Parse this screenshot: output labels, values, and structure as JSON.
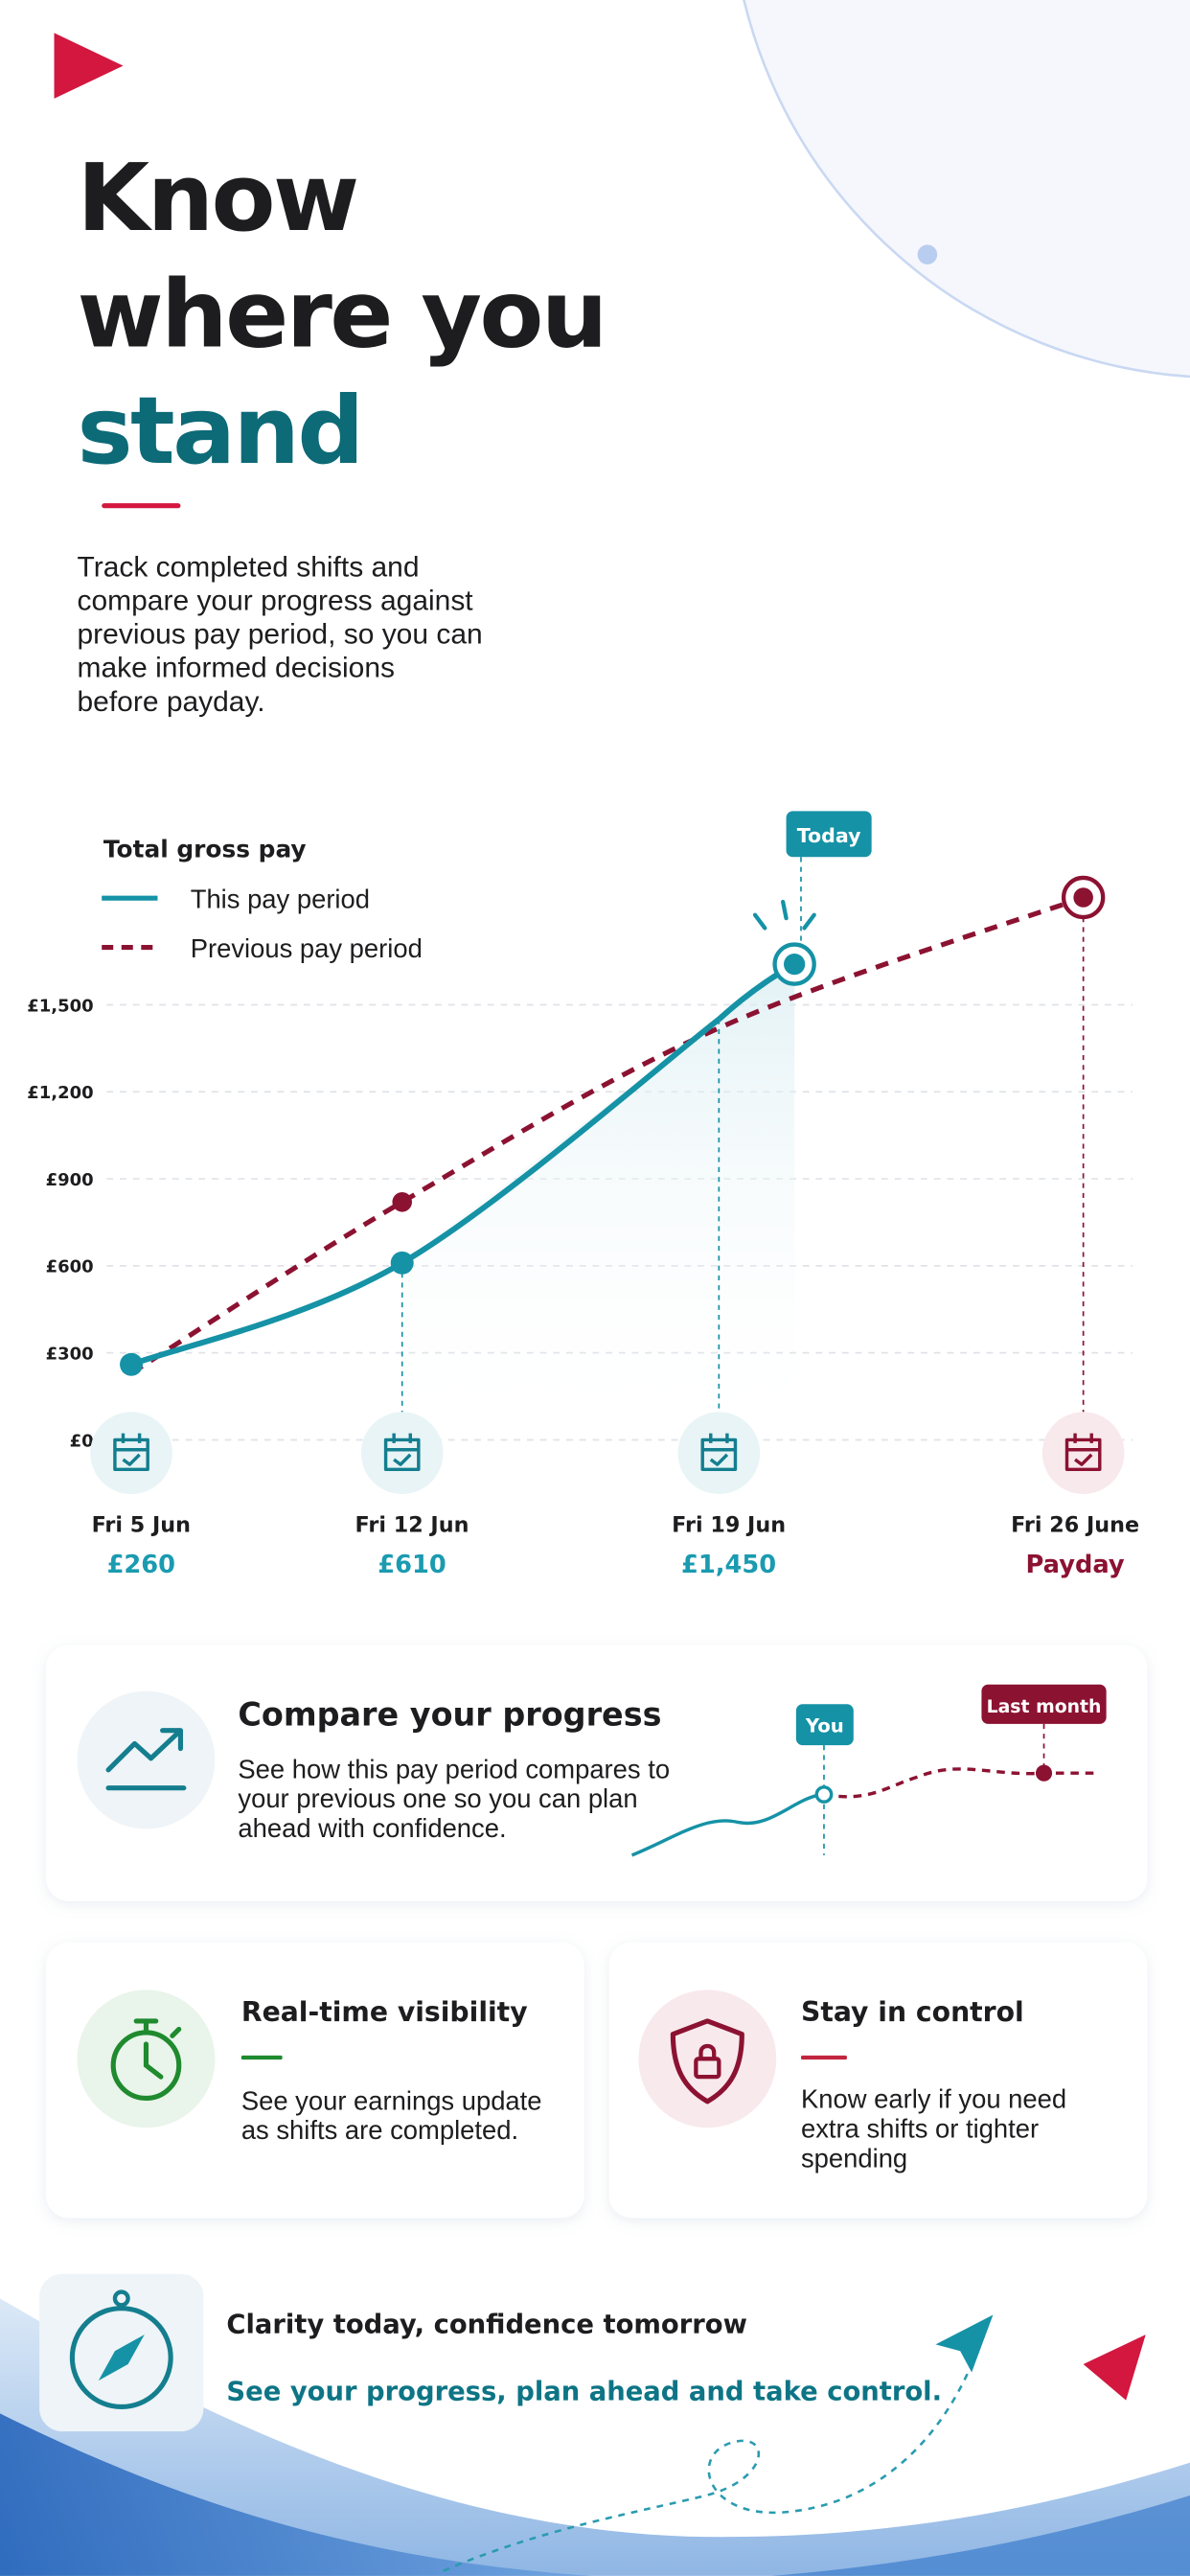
{
  "header": {
    "title_lines": [
      "Know",
      "where you",
      "stand"
    ],
    "description": [
      "Track completed shifts and",
      "compare your progress against",
      "previous pay period, so you can",
      "make informed decisions",
      "before payday."
    ]
  },
  "chart_data": {
    "type": "line",
    "title": "Total gross pay",
    "categories": [
      "Fri 5 Jun",
      "Fri 12 Jun",
      "Fri 19 Jun",
      "Fri 26 June"
    ],
    "series": [
      {
        "name": "This pay period",
        "color": "#1592a6",
        "values": [
          260,
          610,
          1450,
          null
        ],
        "value_labels": [
          "£260",
          "£610",
          "£1,450",
          null
        ]
      },
      {
        "name": "Previous pay period",
        "color": "#8c1232",
        "values": [
          230,
          820,
          1420,
          1870
        ]
      }
    ],
    "annotations": [
      {
        "text": "Today",
        "value": 1640
      },
      {
        "text": "Payday"
      }
    ],
    "ylim": [
      0,
      2100
    ],
    "yticks": [
      {
        "value": 0,
        "label": "£0"
      },
      {
        "value": 300,
        "label": "£300"
      },
      {
        "value": 600,
        "label": "£600"
      },
      {
        "value": 900,
        "label": "£900"
      },
      {
        "value": 1200,
        "label": "£1,200"
      },
      {
        "value": 1500,
        "label": "£1,500"
      }
    ],
    "grid": true,
    "legend": "top-left"
  },
  "cards": [
    {
      "title": "Compare your progress",
      "text": [
        "See how this pay period compares to",
        "your previous one so you can plan",
        "ahead with confidence."
      ],
      "chart_labels": [
        "You",
        "Last month"
      ]
    },
    {
      "title": "Real-time visibility",
      "text": [
        "See your earnings update",
        "as shifts are completed."
      ]
    },
    {
      "title": "Stay in control",
      "text": [
        "Know early if you need",
        "extra shifts or tighter",
        "spending"
      ]
    }
  ],
  "footer": {
    "title": "Clarity today, confidence tomorrow",
    "tagline": "See your progress, plan ahead and take control."
  }
}
